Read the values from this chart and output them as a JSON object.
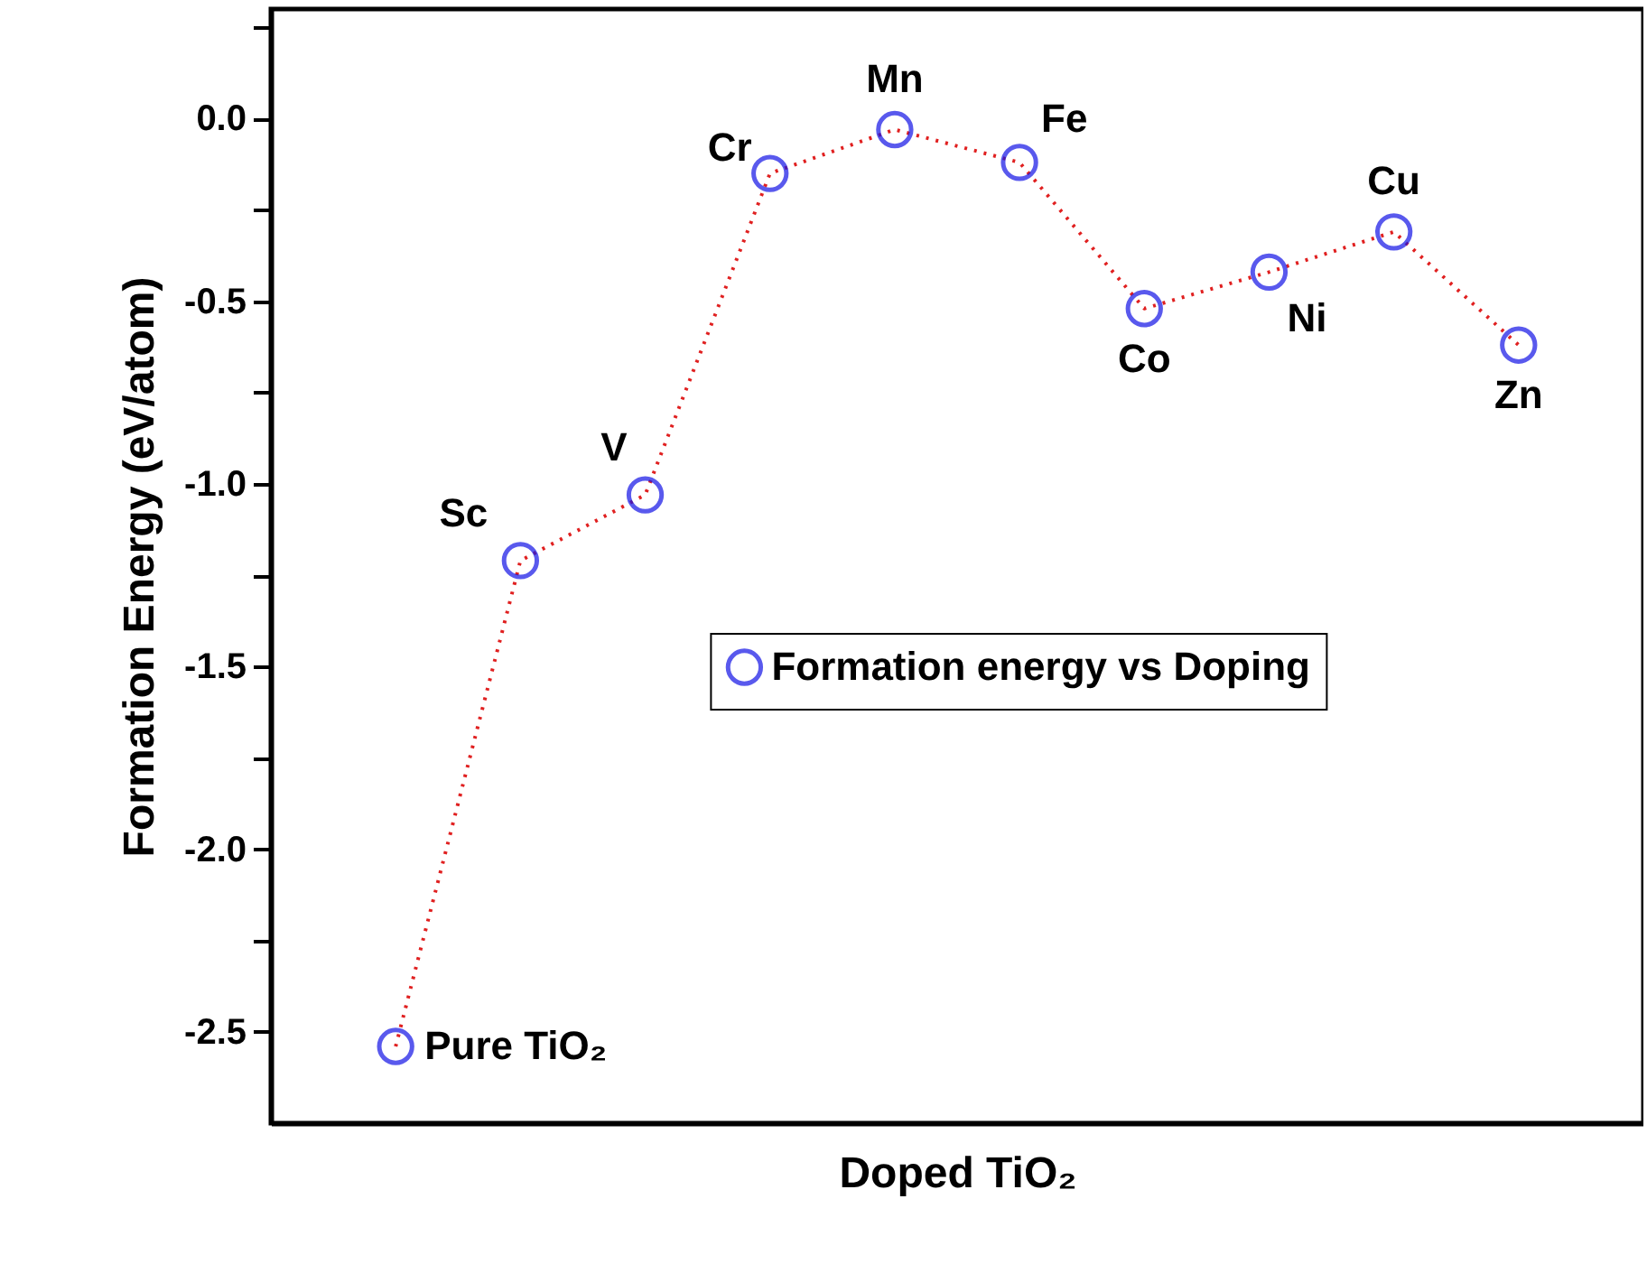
{
  "chart_data": {
    "type": "line",
    "xlabel": "Doped TiO₂",
    "ylabel": "Formation Energy (eV/atom)",
    "categories": [
      null,
      null,
      null,
      null,
      null,
      null,
      null,
      null,
      null,
      null
    ],
    "series": [
      {
        "name": "Formation energy vs Doping",
        "color": "#e02020",
        "colors": [
          "#1414e6",
          "#1414e6",
          "#1414e6",
          "#1414e6",
          "#1414e6",
          "#1414e6",
          "#1414e6",
          "#1414e6",
          "#1414e6",
          "#1414e6"
        ],
        "values": [
          -2.54,
          -1.21,
          -1.03,
          -0.15,
          -0.03,
          -0.12,
          -0.52,
          -0.42,
          -0.31,
          -0.62
        ]
      }
    ],
    "ylim": [
      -2.75,
      0.3
    ],
    "yticks": [
      {
        "value": -2.5,
        "label": "-2.5"
      },
      {
        "value": -2.25,
        "label": null
      },
      {
        "value": -2.0,
        "label": "-2.0"
      },
      {
        "value": -1.75,
        "label": null
      },
      {
        "value": -1.5,
        "label": "-1.5"
      },
      {
        "value": -1.25,
        "label": null
      },
      {
        "value": -1.0,
        "label": "-1.0"
      },
      {
        "value": -0.75,
        "label": null
      },
      {
        "value": -0.5,
        "label": "-0.5"
      },
      {
        "value": -0.25,
        "label": null
      },
      {
        "value": 0,
        "label": "0.0"
      },
      {
        "value": 0.25,
        "label": null
      }
    ],
    "annotations": [
      "Pure TiO₂",
      "Sc",
      "V",
      "Cr",
      "Mn",
      "Fe",
      "Co",
      "Ni",
      "Cu",
      "Zn"
    ],
    "marker": "circle",
    "line_style": "dotted",
    "legend": "right",
    "grid": false
  }
}
